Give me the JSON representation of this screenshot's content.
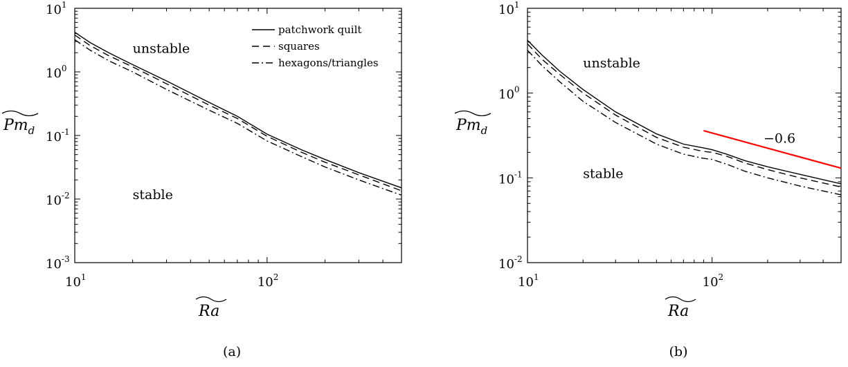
{
  "chart_data": [
    {
      "type": "line",
      "panel_label": "(a)",
      "xlabel": "Ra",
      "ylabel": "Pm",
      "ylabel_sub": "d",
      "x_scale": "log",
      "y_scale": "log",
      "xlim": [
        10,
        500
      ],
      "ylim": [
        0.001,
        10
      ],
      "x_ticks": [
        {
          "base": "10",
          "exp": "1",
          "value": 10
        },
        {
          "base": "10",
          "exp": "2",
          "value": 100
        }
      ],
      "y_ticks": [
        {
          "base": "10",
          "exp": "1",
          "value": 10
        },
        {
          "base": "10",
          "exp": "0",
          "value": 1
        },
        {
          "base": "10",
          "exp": "-1",
          "value": 0.1
        },
        {
          "base": "10",
          "exp": "-2",
          "value": 0.01
        },
        {
          "base": "10",
          "exp": "-3",
          "value": 0.001
        }
      ],
      "grid": false,
      "legend_position": "top-right",
      "annotations": [
        {
          "text": "unstable",
          "x": 20,
          "y": 2.0
        },
        {
          "text": "stable",
          "x": 20,
          "y": 0.01
        }
      ],
      "series": [
        {
          "name": "patchwork quilt",
          "style": "solid",
          "x": [
            10,
            12,
            15,
            20,
            30,
            50,
            70,
            100,
            150,
            200,
            300,
            500
          ],
          "y": [
            4.2,
            2.9,
            2.0,
            1.3,
            0.72,
            0.33,
            0.2,
            0.105,
            0.06,
            0.042,
            0.026,
            0.015
          ]
        },
        {
          "name": "squares",
          "style": "dashed",
          "x": [
            10,
            12,
            15,
            20,
            30,
            50,
            70,
            100,
            150,
            200,
            300,
            500
          ],
          "y": [
            3.8,
            2.6,
            1.8,
            1.2,
            0.65,
            0.3,
            0.185,
            0.097,
            0.055,
            0.038,
            0.024,
            0.0135
          ]
        },
        {
          "name": "hexagons/triangles",
          "style": "dashdot",
          "x": [
            10,
            12,
            15,
            20,
            30,
            50,
            70,
            100,
            150,
            200,
            300,
            500
          ],
          "y": [
            3.2,
            2.2,
            1.5,
            1.0,
            0.53,
            0.25,
            0.155,
            0.082,
            0.047,
            0.032,
            0.02,
            0.0115
          ]
        }
      ]
    },
    {
      "type": "line",
      "panel_label": "(b)",
      "xlabel": "Ra",
      "ylabel": "Pm",
      "ylabel_sub": "d",
      "x_scale": "log",
      "y_scale": "log",
      "xlim": [
        10,
        500
      ],
      "ylim": [
        0.01,
        10
      ],
      "x_ticks": [
        {
          "base": "10",
          "exp": "1",
          "value": 10
        },
        {
          "base": "10",
          "exp": "2",
          "value": 100
        }
      ],
      "y_ticks": [
        {
          "base": "10",
          "exp": "1",
          "value": 10
        },
        {
          "base": "10",
          "exp": "0",
          "value": 1
        },
        {
          "base": "10",
          "exp": "-1",
          "value": 0.1
        },
        {
          "base": "10",
          "exp": "-2",
          "value": 0.01
        }
      ],
      "grid": false,
      "annotations": [
        {
          "text": "unstable",
          "x": 20,
          "y": 2.0
        },
        {
          "text": "stable",
          "x": 20,
          "y": 0.1
        },
        {
          "text": "−0.6",
          "x": 190,
          "y": 0.26
        }
      ],
      "reference_line": {
        "slope": -0.6,
        "color": "#ff0000",
        "x": [
          90,
          500
        ],
        "y": [
          0.36,
          0.13
        ]
      },
      "series": [
        {
          "name": "patchwork quilt",
          "style": "solid",
          "x": [
            10,
            12,
            15,
            20,
            30,
            50,
            70,
            90,
            100,
            120,
            150,
            200,
            300,
            500
          ],
          "y": [
            4.2,
            2.8,
            1.8,
            1.1,
            0.6,
            0.33,
            0.25,
            0.225,
            0.215,
            0.19,
            0.16,
            0.135,
            0.11,
            0.085
          ]
        },
        {
          "name": "squares",
          "style": "dashed",
          "x": [
            10,
            12,
            15,
            20,
            30,
            50,
            70,
            90,
            100,
            120,
            150,
            200,
            300,
            500
          ],
          "y": [
            3.8,
            2.5,
            1.65,
            1.0,
            0.55,
            0.3,
            0.23,
            0.205,
            0.2,
            0.18,
            0.15,
            0.125,
            0.1,
            0.078
          ]
        },
        {
          "name": "hexagons/triangles",
          "style": "dashdot",
          "x": [
            10,
            12,
            15,
            20,
            30,
            50,
            70,
            90,
            100,
            120,
            150,
            200,
            300,
            500
          ],
          "y": [
            3.2,
            2.1,
            1.35,
            0.8,
            0.45,
            0.25,
            0.19,
            0.17,
            0.165,
            0.145,
            0.12,
            0.1,
            0.08,
            0.063
          ]
        }
      ]
    }
  ]
}
